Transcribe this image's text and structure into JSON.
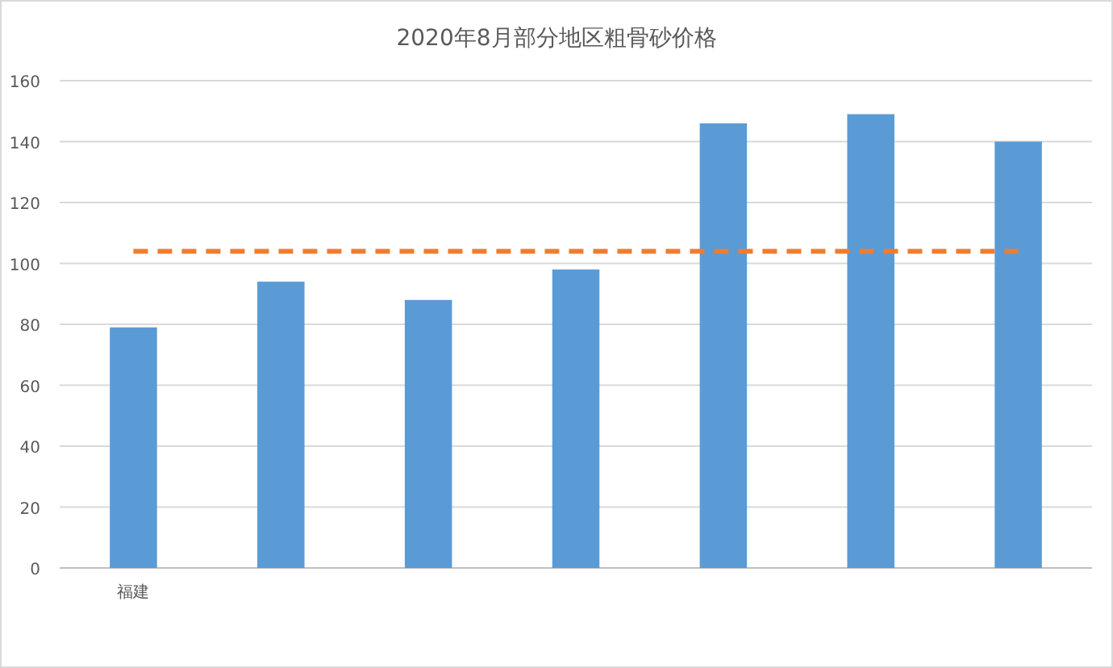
{
  "chart_data": {
    "type": "bar",
    "title": "2020年8月部分地区粗骨砂价格",
    "categories": [
      "福建",
      null,
      null,
      null,
      null,
      null,
      null
    ],
    "series": [
      {
        "color": "#5b9bd5",
        "values": [
          79,
          94,
          88,
          98,
          146,
          149,
          140
        ]
      },
      {
        "type": "line",
        "color": "#ed7d31",
        "line_style": "dashed",
        "marker": "none",
        "values": [
          104,
          104,
          104,
          104,
          104,
          104,
          104
        ]
      }
    ],
    "ylim": [
      0,
      160
    ],
    "yticks": [
      0,
      20,
      40,
      60,
      80,
      100,
      120,
      140,
      160
    ],
    "grid": "y"
  }
}
